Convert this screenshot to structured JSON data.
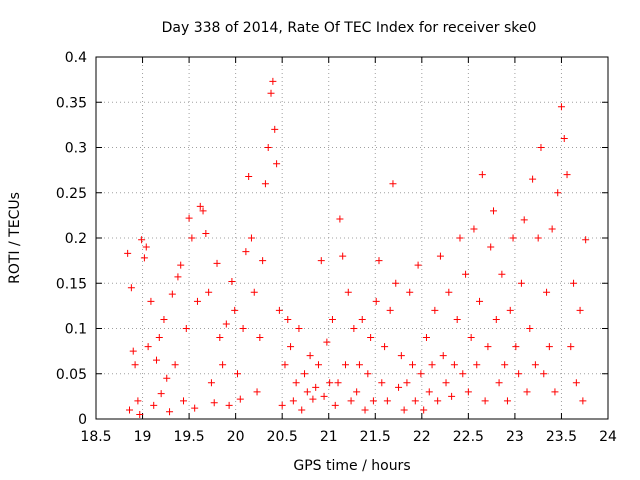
{
  "chart_data": {
    "type": "scatter",
    "title": "Day 338 of 2014, Rate Of TEC Index for receiver ske0",
    "xlabel": "GPS time / hours",
    "ylabel": "ROTI / TECUs",
    "xlim": [
      18.5,
      24
    ],
    "ylim": [
      0,
      0.4
    ],
    "x_ticks": [
      18.5,
      19,
      19.5,
      20,
      20.5,
      21,
      21.5,
      22,
      22.5,
      23,
      23.5,
      24
    ],
    "x_tick_labels": [
      "18.5",
      "19",
      "19.5",
      "20",
      "20.5",
      "21",
      "21.5",
      "22",
      "22.5",
      "23",
      "23.5",
      "24"
    ],
    "y_ticks": [
      0,
      0.05,
      0.1,
      0.15,
      0.2,
      0.25,
      0.3,
      0.35,
      0.4
    ],
    "y_tick_labels": [
      "0",
      "0.05",
      "0.1",
      "0.15",
      "0.2",
      "0.25",
      "0.3",
      "0.35",
      "0.4"
    ],
    "grid": true,
    "marker": "plus",
    "color": "#ff0000",
    "series": [
      {
        "name": "ROTI",
        "points": [
          [
            18.84,
            0.183
          ],
          [
            18.86,
            0.01
          ],
          [
            18.88,
            0.145
          ],
          [
            18.9,
            0.075
          ],
          [
            18.92,
            0.06
          ],
          [
            18.95,
            0.02
          ],
          [
            18.97,
            0.005
          ],
          [
            18.99,
            0.198
          ],
          [
            19.02,
            0.178
          ],
          [
            19.04,
            0.19
          ],
          [
            19.06,
            0.08
          ],
          [
            19.09,
            0.13
          ],
          [
            19.12,
            0.015
          ],
          [
            19.15,
            0.065
          ],
          [
            19.18,
            0.09
          ],
          [
            19.2,
            0.028
          ],
          [
            19.23,
            0.11
          ],
          [
            19.26,
            0.045
          ],
          [
            19.29,
            0.008
          ],
          [
            19.32,
            0.138
          ],
          [
            19.35,
            0.06
          ],
          [
            19.38,
            0.157
          ],
          [
            19.41,
            0.17
          ],
          [
            19.44,
            0.02
          ],
          [
            19.47,
            0.1
          ],
          [
            19.5,
            0.222
          ],
          [
            19.53,
            0.2
          ],
          [
            19.56,
            0.012
          ],
          [
            19.59,
            0.13
          ],
          [
            19.62,
            0.235
          ],
          [
            19.65,
            0.23
          ],
          [
            19.68,
            0.205
          ],
          [
            19.71,
            0.14
          ],
          [
            19.74,
            0.04
          ],
          [
            19.77,
            0.018
          ],
          [
            19.8,
            0.172
          ],
          [
            19.83,
            0.09
          ],
          [
            19.86,
            0.06
          ],
          [
            19.9,
            0.105
          ],
          [
            19.93,
            0.015
          ],
          [
            19.96,
            0.152
          ],
          [
            19.99,
            0.12
          ],
          [
            20.02,
            0.05
          ],
          [
            20.05,
            0.022
          ],
          [
            20.08,
            0.1
          ],
          [
            20.11,
            0.185
          ],
          [
            20.14,
            0.268
          ],
          [
            20.17,
            0.2
          ],
          [
            20.2,
            0.14
          ],
          [
            20.23,
            0.03
          ],
          [
            20.26,
            0.09
          ],
          [
            20.29,
            0.175
          ],
          [
            20.32,
            0.26
          ],
          [
            20.35,
            0.3
          ],
          [
            20.38,
            0.36
          ],
          [
            20.4,
            0.373
          ],
          [
            20.42,
            0.32
          ],
          [
            20.44,
            0.282
          ],
          [
            20.47,
            0.12
          ],
          [
            20.5,
            0.015
          ],
          [
            20.53,
            0.06
          ],
          [
            20.56,
            0.11
          ],
          [
            20.59,
            0.08
          ],
          [
            20.62,
            0.02
          ],
          [
            20.65,
            0.04
          ],
          [
            20.68,
            0.1
          ],
          [
            20.71,
            0.01
          ],
          [
            20.74,
            0.05
          ],
          [
            20.77,
            0.03
          ],
          [
            20.8,
            0.07
          ],
          [
            20.83,
            0.022
          ],
          [
            20.86,
            0.035
          ],
          [
            20.89,
            0.06
          ],
          [
            20.92,
            0.175
          ],
          [
            20.95,
            0.025
          ],
          [
            20.98,
            0.085
          ],
          [
            21.01,
            0.04
          ],
          [
            21.04,
            0.11
          ],
          [
            21.07,
            0.015
          ],
          [
            21.1,
            0.04
          ],
          [
            21.12,
            0.221
          ],
          [
            21.15,
            0.18
          ],
          [
            21.18,
            0.06
          ],
          [
            21.21,
            0.14
          ],
          [
            21.24,
            0.02
          ],
          [
            21.27,
            0.1
          ],
          [
            21.3,
            0.03
          ],
          [
            21.33,
            0.06
          ],
          [
            21.36,
            0.11
          ],
          [
            21.39,
            0.01
          ],
          [
            21.42,
            0.05
          ],
          [
            21.45,
            0.09
          ],
          [
            21.48,
            0.02
          ],
          [
            21.51,
            0.13
          ],
          [
            21.54,
            0.175
          ],
          [
            21.57,
            0.04
          ],
          [
            21.6,
            0.08
          ],
          [
            21.63,
            0.02
          ],
          [
            21.66,
            0.12
          ],
          [
            21.69,
            0.26
          ],
          [
            21.72,
            0.15
          ],
          [
            21.75,
            0.035
          ],
          [
            21.78,
            0.07
          ],
          [
            21.81,
            0.01
          ],
          [
            21.84,
            0.04
          ],
          [
            21.87,
            0.14
          ],
          [
            21.9,
            0.06
          ],
          [
            21.93,
            0.02
          ],
          [
            21.96,
            0.17
          ],
          [
            21.99,
            0.05
          ],
          [
            22.02,
            0.01
          ],
          [
            22.05,
            0.09
          ],
          [
            22.08,
            0.03
          ],
          [
            22.11,
            0.06
          ],
          [
            22.14,
            0.12
          ],
          [
            22.17,
            0.02
          ],
          [
            22.2,
            0.18
          ],
          [
            22.23,
            0.07
          ],
          [
            22.26,
            0.04
          ],
          [
            22.29,
            0.14
          ],
          [
            22.32,
            0.025
          ],
          [
            22.35,
            0.06
          ],
          [
            22.38,
            0.11
          ],
          [
            22.41,
            0.2
          ],
          [
            22.44,
            0.05
          ],
          [
            22.47,
            0.16
          ],
          [
            22.5,
            0.03
          ],
          [
            22.53,
            0.09
          ],
          [
            22.56,
            0.21
          ],
          [
            22.59,
            0.06
          ],
          [
            22.62,
            0.13
          ],
          [
            22.65,
            0.27
          ],
          [
            22.68,
            0.02
          ],
          [
            22.71,
            0.08
          ],
          [
            22.74,
            0.19
          ],
          [
            22.77,
            0.23
          ],
          [
            22.8,
            0.11
          ],
          [
            22.83,
            0.04
          ],
          [
            22.86,
            0.16
          ],
          [
            22.89,
            0.06
          ],
          [
            22.92,
            0.02
          ],
          [
            22.95,
            0.12
          ],
          [
            22.98,
            0.2
          ],
          [
            23.01,
            0.08
          ],
          [
            23.04,
            0.05
          ],
          [
            23.07,
            0.15
          ],
          [
            23.1,
            0.22
          ],
          [
            23.13,
            0.03
          ],
          [
            23.16,
            0.1
          ],
          [
            23.19,
            0.265
          ],
          [
            23.22,
            0.06
          ],
          [
            23.25,
            0.2
          ],
          [
            23.28,
            0.3
          ],
          [
            23.31,
            0.05
          ],
          [
            23.34,
            0.14
          ],
          [
            23.37,
            0.08
          ],
          [
            23.4,
            0.21
          ],
          [
            23.43,
            0.03
          ],
          [
            23.46,
            0.25
          ],
          [
            23.5,
            0.345
          ],
          [
            23.53,
            0.31
          ],
          [
            23.56,
            0.27
          ],
          [
            23.6,
            0.08
          ],
          [
            23.63,
            0.15
          ],
          [
            23.66,
            0.04
          ],
          [
            23.7,
            0.12
          ],
          [
            23.73,
            0.02
          ],
          [
            23.76,
            0.198
          ]
        ]
      }
    ]
  }
}
